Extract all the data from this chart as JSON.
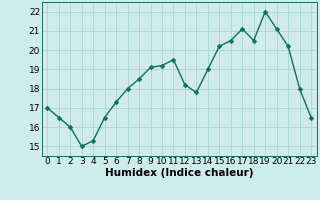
{
  "x": [
    0,
    1,
    2,
    3,
    4,
    5,
    6,
    7,
    8,
    9,
    10,
    11,
    12,
    13,
    14,
    15,
    16,
    17,
    18,
    19,
    20,
    21,
    22,
    23
  ],
  "y": [
    17.0,
    16.5,
    16.0,
    15.0,
    15.3,
    16.5,
    17.3,
    18.0,
    18.5,
    19.1,
    19.2,
    19.5,
    18.2,
    17.8,
    19.0,
    20.2,
    20.5,
    21.1,
    20.5,
    22.0,
    21.1,
    20.2,
    18.0,
    16.5
  ],
  "xlabel": "Humidex (Indice chaleur)",
  "ylim": [
    14.5,
    22.5
  ],
  "xlim": [
    -0.5,
    23.5
  ],
  "yticks": [
    15,
    16,
    17,
    18,
    19,
    20,
    21,
    22
  ],
  "xticks": [
    0,
    1,
    2,
    3,
    4,
    5,
    6,
    7,
    8,
    9,
    10,
    11,
    12,
    13,
    14,
    15,
    16,
    17,
    18,
    19,
    20,
    21,
    22,
    23
  ],
  "line_color": "#1a6b5a",
  "marker_color": "#1a6b5a",
  "bg_color": "#cdecea",
  "grid_color": "#add8d4",
  "xlabel_fontsize": 7.5,
  "tick_fontsize": 6.5,
  "marker_size": 2.5,
  "line_width": 1.0
}
